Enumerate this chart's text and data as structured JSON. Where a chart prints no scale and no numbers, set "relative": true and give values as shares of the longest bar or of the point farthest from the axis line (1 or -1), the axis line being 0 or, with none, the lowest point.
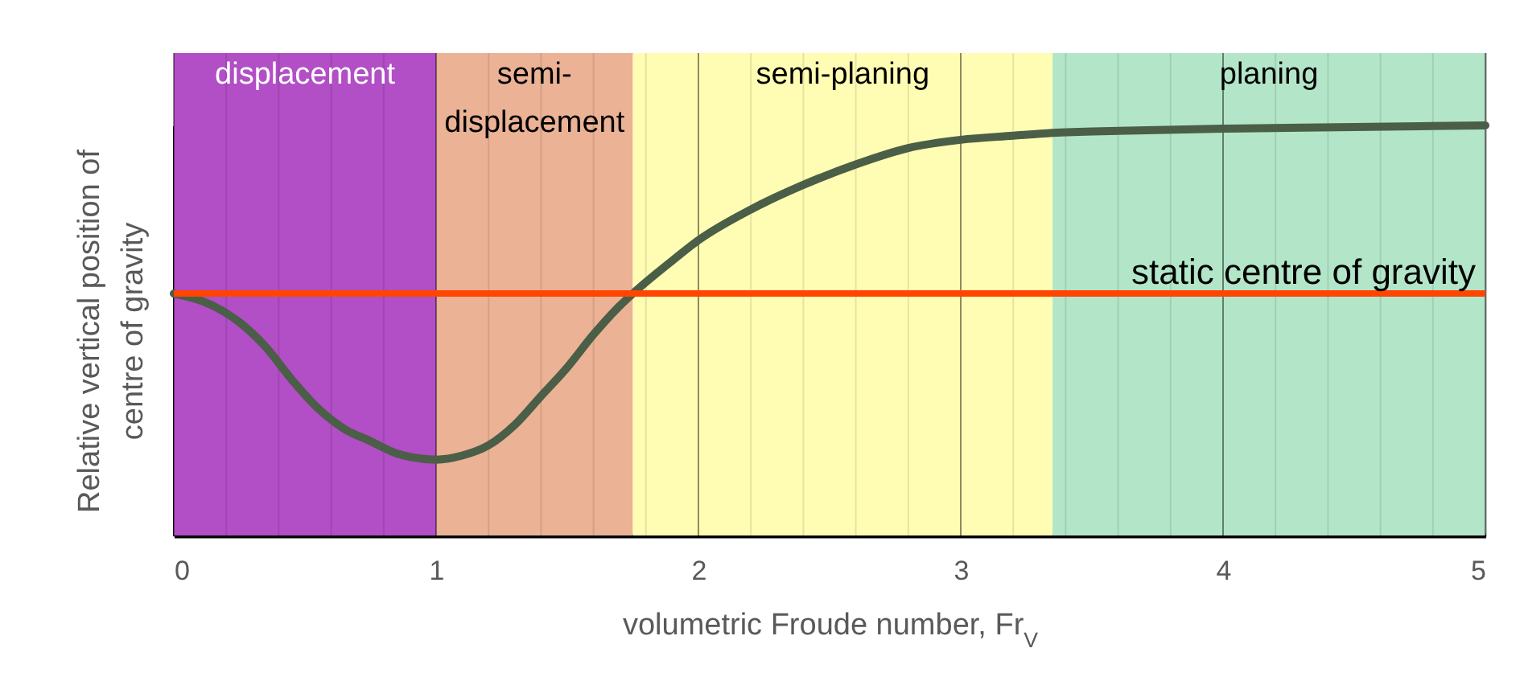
{
  "chart_data": {
    "type": "line",
    "relative": true,
    "xlabel": "volumetric Froude number, Fr$_{V}$",
    "ylabel": "Relative vertical position of centre of gravity",
    "x": [
      0,
      0.15,
      0.25,
      0.35,
      0.45,
      0.55,
      0.65,
      0.75,
      0.85,
      1.0,
      1.1,
      1.2,
      1.3,
      1.4,
      1.5,
      1.6,
      1.7,
      1.75,
      1.9,
      2.0,
      2.2,
      2.4,
      2.6,
      2.8,
      3.0,
      3.2,
      3.35,
      3.6,
      4.0,
      4.5,
      5.0
    ],
    "series": [
      {
        "color": "#4b5e47",
        "values": [
          0.59,
          0.56,
          0.52,
          0.46,
          0.38,
          0.31,
          0.26,
          0.23,
          0.2,
          0.185,
          0.195,
          0.22,
          0.27,
          0.34,
          0.41,
          0.49,
          0.56,
          0.59,
          0.67,
          0.72,
          0.795,
          0.855,
          0.905,
          0.945,
          0.965,
          0.975,
          0.982,
          0.987,
          0.992,
          0.996,
          1
        ]
      }
    ],
    "xlim": [
      0,
      5
    ],
    "xticks": [
      0,
      {
        "value": 0.2,
        "label": null
      },
      {
        "value": 0.4,
        "label": null
      },
      {
        "value": 0.6,
        "label": null
      },
      {
        "value": 0.8,
        "label": null
      },
      1,
      {
        "value": 1.2,
        "label": null
      },
      {
        "value": 1.4,
        "label": null
      },
      {
        "value": 1.6,
        "label": null
      },
      {
        "value": 1.8,
        "label": null
      },
      2,
      {
        "value": 2.2,
        "label": null
      },
      {
        "value": 2.4,
        "label": null
      },
      {
        "value": 2.6,
        "label": null
      },
      {
        "value": 2.8,
        "label": null
      },
      3,
      {
        "value": 3.2,
        "label": null
      },
      {
        "value": 3.4,
        "label": null
      },
      {
        "value": 3.6,
        "label": null
      },
      {
        "value": 3.8,
        "label": null
      },
      4,
      {
        "value": 4.2,
        "label": null
      },
      {
        "value": 4.4,
        "label": null
      },
      {
        "value": 4.6,
        "label": null
      },
      {
        "value": 4.8,
        "label": null
      },
      5
    ],
    "grid": true,
    "ref_lines": [
      {
        "axis": "y",
        "value": 0.59,
        "label": "static centre of gravity",
        "color": "#ff4500"
      }
    ],
    "bands": [
      {
        "axis": "x",
        "from": 0,
        "to": 1,
        "label": "displacement",
        "color": "#b24ec6"
      },
      {
        "axis": "x",
        "from": 1,
        "to": 1.75,
        "label": "semi-displacement",
        "color": "#ebb295"
      },
      {
        "axis": "x",
        "from": 1.75,
        "to": 3.35,
        "label": "semi-planing",
        "color": "#fffdb3"
      },
      {
        "axis": "x",
        "from": 3.35,
        "to": 5,
        "label": "planing",
        "color": "#b3e6c8"
      }
    ]
  }
}
